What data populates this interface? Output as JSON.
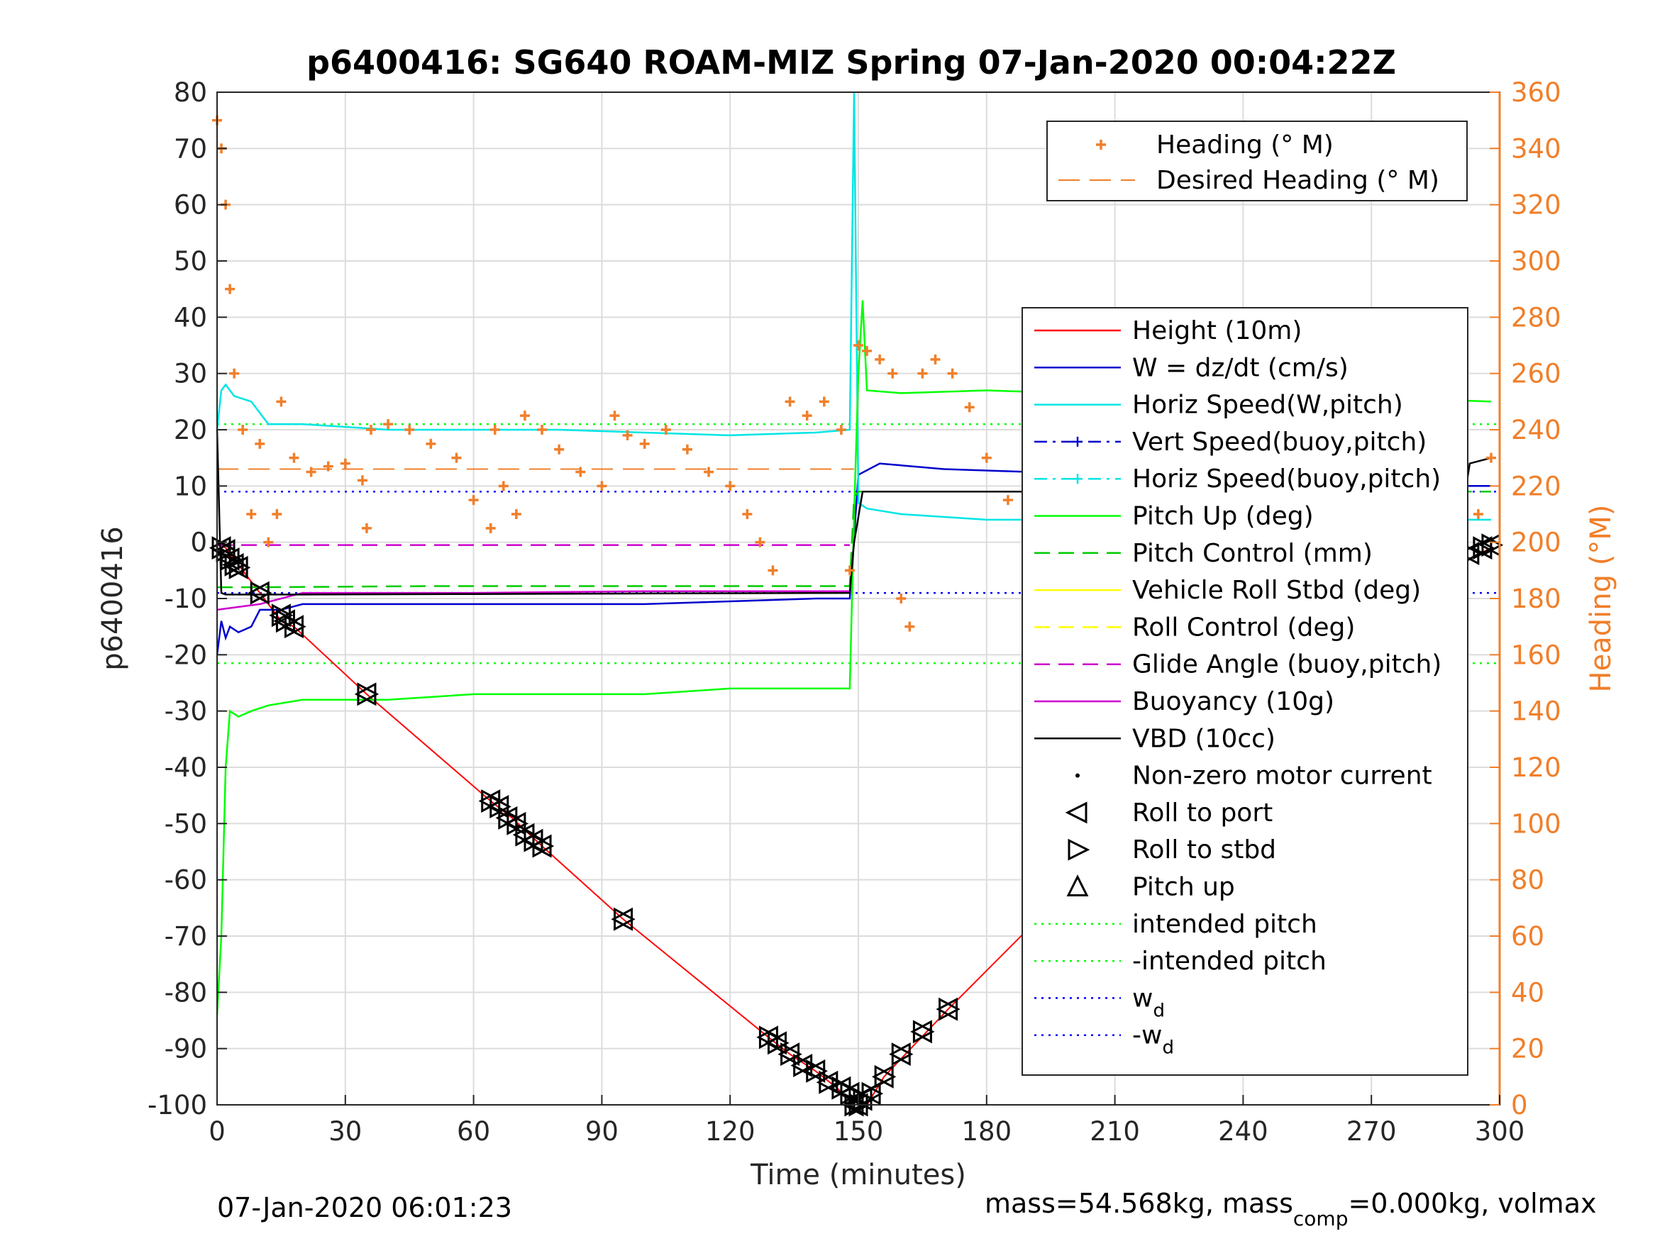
{
  "chart_data": {
    "type": "line",
    "title": "p6400416: SG640 ROAM-MIZ Spring 07-Jan-2020 00:04:22Z",
    "xlabel": "Time (minutes)",
    "ylabel_left": "p6400416",
    "ylabel_right": "Heading (°M)",
    "xlim": [
      0,
      300
    ],
    "ylim_left": [
      -100,
      80
    ],
    "ylim_right": [
      0,
      360
    ],
    "x_ticks": [
      "0",
      "30",
      "60",
      "90",
      "120",
      "150",
      "180",
      "210",
      "240",
      "270",
      "300"
    ],
    "y_ticks_left": [
      "80",
      "70",
      "60",
      "50",
      "40",
      "30",
      "20",
      "10",
      "0",
      "-10",
      "-20",
      "-30",
      "-40",
      "-50",
      "-60",
      "-70",
      "-80",
      "-90",
      "-100"
    ],
    "y_ticks_right": [
      "360",
      "340",
      "320",
      "300",
      "280",
      "260",
      "240",
      "220",
      "200",
      "180",
      "160",
      "140",
      "120",
      "100",
      "80",
      "60",
      "40",
      "20",
      "0"
    ],
    "grid": true,
    "footer_left": "07-Jan-2020 06:01:23",
    "footer_right": "mass=54.568kg, mass",
    "footer_right_sub": "comp",
    "footer_right_tail": "=0.000kg, volmax",
    "legend_heading": [
      {
        "name": "Heading (° M)",
        "color": "#f07f2a",
        "style": "plus"
      },
      {
        "name": "Desired Heading (° M)",
        "color": "#f07f2a",
        "style": "dash"
      }
    ],
    "legend_main": [
      {
        "name": "Height (10m)",
        "color": "#ff0000",
        "style": "solid"
      },
      {
        "name": "W = dz/dt (cm/s)",
        "color": "#0000cc",
        "style": "solid"
      },
      {
        "name": "Horiz Speed(W,pitch)",
        "color": "#00e5e5",
        "style": "solid"
      },
      {
        "name": "Vert Speed(buoy,pitch)",
        "color": "#0000cc",
        "style": "dashdot"
      },
      {
        "name": "Horiz Speed(buoy,pitch)",
        "color": "#00e5e5",
        "style": "dashdot"
      },
      {
        "name": "Pitch Up (deg)",
        "color": "#00ff00",
        "style": "solid"
      },
      {
        "name": "Pitch Control (mm)",
        "color": "#00cc00",
        "style": "dash"
      },
      {
        "name": "Vehicle Roll Stbd (deg)",
        "color": "#ffff00",
        "style": "solid"
      },
      {
        "name": "Roll Control (deg)",
        "color": "#ffff00",
        "style": "dash"
      },
      {
        "name": "Glide Angle (buoy,pitch)",
        "color": "#cc00cc",
        "style": "dash"
      },
      {
        "name": "Buoyancy (10g)",
        "color": "#cc00cc",
        "style": "solid"
      },
      {
        "name": "VBD (10cc)",
        "color": "#000000",
        "style": "solid"
      },
      {
        "name": "Non-zero motor current",
        "color": "#000000",
        "style": "dot"
      },
      {
        "name": "Roll to port",
        "color": "#000000",
        "style": "tri-left"
      },
      {
        "name": "Roll to stbd",
        "color": "#000000",
        "style": "tri-right"
      },
      {
        "name": "Pitch up",
        "color": "#000000",
        "style": "tri-up"
      },
      {
        "name": "intended pitch",
        "color": "#00ff00",
        "style": "dotted"
      },
      {
        "name": "-intended pitch",
        "color": "#00ff00",
        "style": "dotted"
      },
      {
        "name": "w",
        "sub": "d",
        "color": "#0000ff",
        "style": "dotted"
      },
      {
        "name": "-w",
        "sub": "d",
        "color": "#0000ff",
        "style": "dotted"
      }
    ],
    "reference_lines": {
      "intended_pitch": 21,
      "neg_intended_pitch": -21.5,
      "w_d": 9,
      "neg_w_d": -9,
      "desired_heading_dive": 226,
      "desired_heading_climb": 226
    },
    "series": [
      {
        "name": "Height (10m)",
        "color": "#ff0000",
        "x": [
          0,
          2,
          5,
          10,
          15,
          18,
          35,
          64,
          69,
          76,
          95,
          129,
          134,
          140,
          145,
          149,
          152,
          156,
          161,
          166,
          171,
          192,
          197,
          203,
          212,
          225,
          240,
          255,
          270,
          285,
          293,
          298
        ],
        "y": [
          0,
          -1,
          -4,
          -9,
          -14,
          -15,
          -27,
          -46,
          -49,
          -54,
          -67,
          -88,
          -91,
          -94,
          -97,
          -100,
          -100,
          -95,
          -91,
          -87,
          -83,
          -67,
          -64,
          -60,
          -53,
          -43,
          -33,
          -23,
          -15,
          -8,
          -3,
          -1
        ]
      },
      {
        "name": "W = dz/dt (cm/s)",
        "color": "#0000cc",
        "x": [
          0,
          1,
          2,
          3,
          5,
          8,
          10,
          15,
          20,
          30,
          40,
          60,
          80,
          100,
          120,
          140,
          148,
          150,
          155,
          170,
          190,
          210,
          230,
          250,
          270,
          290,
          298
        ],
        "y": [
          -20,
          -14,
          -17,
          -15,
          -16,
          -15,
          -12,
          -12,
          -11,
          -11,
          -11,
          -11,
          -11,
          -11,
          -10.5,
          -10,
          -10,
          12,
          14,
          13,
          12.5,
          12,
          11,
          11,
          11,
          10,
          10
        ]
      },
      {
        "name": "Horiz Speed(W,pitch)",
        "color": "#00e5e5",
        "x": [
          0,
          1,
          2,
          4,
          8,
          12,
          20,
          30,
          40,
          60,
          80,
          100,
          120,
          140,
          148,
          149,
          150,
          152,
          160,
          180,
          200,
          220,
          240,
          260,
          280,
          298
        ],
        "y": [
          20,
          27,
          28,
          26,
          25,
          21,
          21,
          20.5,
          20,
          20,
          20,
          19.5,
          19,
          19.5,
          20,
          80,
          7,
          6,
          5,
          4,
          4,
          4,
          4,
          4,
          4,
          4
        ]
      },
      {
        "name": "Pitch Up (deg)",
        "color": "#00ff00",
        "x": [
          0,
          1,
          2,
          3,
          5,
          8,
          12,
          20,
          40,
          60,
          80,
          100,
          120,
          140,
          148,
          149,
          150,
          151,
          152,
          160,
          180,
          200,
          220,
          240,
          260,
          280,
          298
        ],
        "y": [
          -84,
          -70,
          -40,
          -30,
          -31,
          -30,
          -29,
          -28,
          -28,
          -27,
          -27,
          -27,
          -26,
          -26,
          -26,
          5,
          30,
          43,
          27,
          26.5,
          27,
          26.5,
          26,
          26,
          26,
          25.5,
          25
        ]
      },
      {
        "name": "Pitch Control (mm)",
        "color": "#00cc00",
        "x": [
          0,
          10,
          50,
          100,
          148,
          149,
          150,
          200,
          298
        ],
        "y": [
          -8,
          -8,
          -7.8,
          -7.8,
          -7.8,
          8,
          9,
          9,
          9
        ]
      },
      {
        "name": "Glide Angle (buoy,pitch)",
        "color": "#cc00cc",
        "x": [
          0,
          20,
          60,
          100,
          148
        ],
        "y": [
          -0.5,
          -0.5,
          -0.5,
          -0.5,
          -0.5
        ]
      },
      {
        "name": "Buoyancy (10g)",
        "color": "#cc00cc",
        "x": [
          0,
          10,
          20,
          60,
          100,
          148
        ],
        "y": [
          -12,
          -11,
          -9,
          -9,
          -8.7,
          -8.7
        ]
      },
      {
        "name": "VBD (10cc)",
        "color": "#000000",
        "x": [
          0,
          1,
          2,
          20,
          60,
          100,
          148,
          149,
          151,
          200,
          280,
          292,
          293,
          298
        ],
        "y": [
          20,
          -9,
          -9.3,
          -9.3,
          -9.2,
          -9.1,
          -9,
          0,
          9,
          9,
          9,
          9,
          14,
          15
        ]
      },
      {
        "name": "Heading (° M)",
        "color": "#f07f2a",
        "x": [
          0,
          1,
          2,
          3,
          4,
          6,
          8,
          10,
          12,
          14,
          15,
          18,
          22,
          26,
          30,
          34,
          35,
          36,
          40,
          45,
          50,
          56,
          60,
          64,
          65,
          67,
          70,
          72,
          76,
          80,
          85,
          90,
          93,
          96,
          100,
          105,
          110,
          115,
          120,
          124,
          127,
          130,
          134,
          138,
          142,
          146,
          148,
          150,
          152,
          155,
          158,
          160,
          162,
          165,
          168,
          172,
          176,
          180,
          185,
          190,
          192,
          196,
          200,
          205,
          210,
          215,
          220,
          225,
          230,
          235,
          240,
          245,
          250,
          255,
          260,
          265,
          270,
          275,
          280,
          285,
          290,
          295,
          298
        ],
        "y": [
          350,
          340,
          320,
          290,
          260,
          240,
          210,
          235,
          200,
          210,
          250,
          230,
          225,
          227,
          228,
          222,
          205,
          240,
          242,
          240,
          235,
          230,
          215,
          205,
          240,
          220,
          210,
          245,
          240,
          233,
          225,
          220,
          245,
          238,
          235,
          240,
          233,
          225,
          220,
          210,
          200,
          190,
          250,
          245,
          250,
          240,
          190,
          270,
          268,
          265,
          260,
          180,
          170,
          260,
          265,
          260,
          248,
          230,
          215,
          200,
          195,
          215,
          200,
          190,
          230,
          210,
          245,
          200,
          185,
          235,
          240,
          220,
          210,
          230,
          250,
          220,
          240,
          270,
          225,
          240,
          200,
          210,
          230
        ]
      }
    ],
    "markers": {
      "description": "triangle markers (roll to port / roll to stbd / pitch up) located along height trace",
      "x": [
        1,
        2,
        3,
        4,
        5,
        10,
        15,
        16,
        18,
        35,
        64,
        66,
        68,
        70,
        72,
        74,
        76,
        95,
        129,
        131,
        134,
        137,
        140,
        143,
        146,
        148,
        149,
        150,
        151,
        153,
        156,
        160,
        165,
        171,
        192,
        196,
        200,
        203,
        206,
        210,
        215,
        220,
        225,
        230,
        235,
        240,
        245,
        250,
        255,
        260,
        265,
        270,
        275,
        280,
        285,
        290,
        293,
        296,
        298
      ],
      "y": [
        -1,
        -1.5,
        -3,
        -4,
        -4.5,
        -9,
        -13,
        -14,
        -15,
        -27,
        -46,
        -47,
        -49,
        -50,
        -52,
        -53,
        -54,
        -67,
        -88,
        -89,
        -91,
        -93,
        -94,
        -96,
        -97,
        -98,
        -100,
        -100,
        -99,
        -98,
        -95,
        -91,
        -87,
        -83,
        -67,
        -64,
        -61,
        -59,
        -56,
        -53,
        -49,
        -46,
        -42,
        -39,
        -35,
        -32,
        -28,
        -25,
        -22,
        -19,
        -16,
        -13,
        -10,
        -7,
        -5,
        -3,
        -2,
        -1,
        -0.5
      ]
    }
  }
}
